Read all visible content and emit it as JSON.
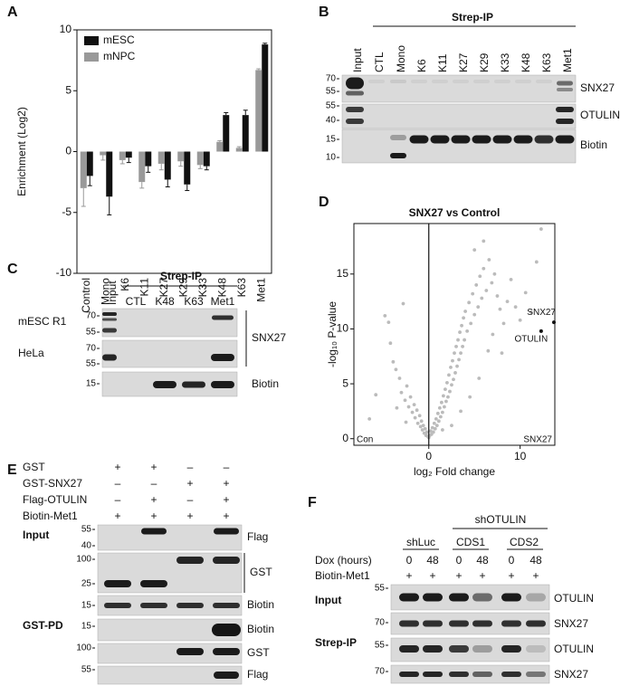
{
  "chart_data": [
    {
      "type": "bar",
      "ylabel": "Enrichment (Log2)",
      "categories": [
        "Control",
        "Mono",
        "K6",
        "K11",
        "K27",
        "K29",
        "K33",
        "K48",
        "K63",
        "Met1"
      ],
      "series": [
        {
          "name": "mESC",
          "color": "#111111",
          "values": [
            -2,
            -3.7,
            -0.5,
            -1.2,
            -2.3,
            -2.7,
            -1.2,
            3.0,
            3.0,
            8.8
          ],
          "errors": [
            0.8,
            1.5,
            0.4,
            0.5,
            0.6,
            0.5,
            0.3,
            0.2,
            0.4,
            0.1
          ]
        },
        {
          "name": "mNPC",
          "color": "#999999",
          "values": [
            -3,
            -0.3,
            -0.7,
            -2.5,
            -1.0,
            -0.8,
            -1.1,
            0.8,
            0.3,
            6.7
          ],
          "errors": [
            1.5,
            0.4,
            0.3,
            0.5,
            0.5,
            0.4,
            0.3,
            0.1,
            0.1,
            0.1
          ]
        }
      ],
      "ylim": [
        -10,
        10
      ],
      "yticks": [
        -10,
        -5,
        0,
        5,
        10
      ],
      "legend": "upper left"
    },
    {
      "type": "scatter",
      "title": "SNX27 vs Control",
      "xlabel": "log₂ Fold change",
      "ylabel": "-log₁₀ P-value",
      "color": "#bbbbbb",
      "x": [
        -6.5,
        -5.8,
        -4.8,
        -4.4,
        -4.2,
        -3.9,
        -3.6,
        -3.2,
        -3,
        -2.8,
        -2.6,
        -2.4,
        -2.2,
        -2,
        -1.8,
        -1.6,
        -1.5,
        -1.3,
        -1.2,
        -1,
        -0.9,
        -0.8,
        -0.7,
        -0.6,
        -0.5,
        -0.4,
        -0.3,
        -0.2,
        -0.1,
        0,
        0.1,
        0.2,
        0.3,
        0.4,
        0.5,
        0.6,
        0.7,
        0.8,
        0.9,
        1,
        1.1,
        1.2,
        1.3,
        1.4,
        1.5,
        1.6,
        1.7,
        1.8,
        1.9,
        2,
        2.1,
        2.2,
        2.3,
        2.4,
        2.5,
        2.6,
        2.7,
        2.8,
        2.9,
        3,
        3.1,
        3.2,
        3.3,
        3.4,
        3.5,
        3.6,
        3.7,
        3.8,
        3.9,
        4,
        4.2,
        4.4,
        4.6,
        4.8,
        5,
        5.2,
        5.4,
        5.6,
        5.8,
        6,
        6.3,
        6.6,
        6.9,
        7.2,
        7.5,
        7.8,
        8.2,
        8.6,
        9,
        9.5,
        10,
        10.6,
        11.2,
        12.3,
        2.5,
        3.5,
        4.5,
        5.5,
        6.5,
        1.5,
        -2.5,
        -3.5,
        5,
        6,
        11.8,
        7,
        8
      ],
      "values": [
        1.8,
        4,
        11.2,
        10.6,
        8.7,
        7,
        6.3,
        5.5,
        4.2,
        12.3,
        3.5,
        4.8,
        2.9,
        3.8,
        2.4,
        3.1,
        1.9,
        2.6,
        1.4,
        2.1,
        1.1,
        1.6,
        0.8,
        1.2,
        0.5,
        0.9,
        0.3,
        0.6,
        0.2,
        0.1,
        0.3,
        0.7,
        0.4,
        1,
        0.6,
        1.4,
        0.9,
        1.8,
        1.2,
        2.3,
        1.6,
        2.8,
        2,
        3.3,
        2.4,
        3.9,
        2.9,
        4.5,
        3.4,
        5.1,
        3.8,
        5.8,
        4.3,
        6.5,
        4.9,
        7.1,
        5.4,
        7.8,
        6,
        8.4,
        6.6,
        9,
        7.2,
        9.7,
        7.8,
        10.3,
        8.4,
        11,
        9,
        11.6,
        9.8,
        12.4,
        10.5,
        13.2,
        11.3,
        14,
        12,
        14.8,
        12.8,
        15.5,
        13.5,
        16.3,
        14.2,
        15,
        13,
        11.8,
        10.5,
        12.5,
        14.5,
        12,
        10.8,
        13.3,
        11.5,
        19.1,
        1.2,
        2.5,
        3.8,
        5.5,
        8,
        0.8,
        1.5,
        2.8,
        17.2,
        18,
        16.1,
        9.5,
        7.8
      ],
      "xlim": [
        -8.2,
        13.8
      ],
      "ylim": [
        -0.6,
        19.6
      ],
      "xticks": [
        0,
        10
      ],
      "yticks": [
        0,
        5,
        10,
        15
      ],
      "highlights": [
        {
          "label": "SNX27",
          "x": 13.7,
          "y": 10.6
        },
        {
          "label": "OTULIN",
          "x": 12.3,
          "y": 9.8
        }
      ],
      "corner_labels": [
        "Con",
        "SNX27"
      ]
    }
  ],
  "panel_labels": [
    "A",
    "B",
    "C",
    "D",
    "E",
    "F"
  ],
  "panel_b": {
    "header": "Strep-IP",
    "lanes": [
      "Input",
      "CTL",
      "Mono",
      "K6",
      "K11",
      "K27",
      "K29",
      "K33",
      "K48",
      "K63",
      "Met1"
    ],
    "blots": [
      {
        "protein": "SNX27",
        "markers": [
          "70",
          "55"
        ]
      },
      {
        "protein": "OTULIN",
        "markers": [
          "55",
          "40"
        ]
      },
      {
        "protein": "Biotin",
        "markers": [
          "15",
          "10"
        ]
      }
    ]
  },
  "panel_c": {
    "header": "Strep-IP",
    "lanes": [
      "Input",
      "CTL",
      "K48",
      "K63",
      "Met1"
    ],
    "blots": [
      {
        "cell_line": "mESC R1",
        "markers": [
          "70",
          "55"
        ]
      },
      {
        "cell_line": "HeLa",
        "markers": [
          "70",
          "55"
        ]
      },
      {
        "protein": "Biotin",
        "markers": [
          "15"
        ]
      }
    ],
    "bracket_label": "SNX27"
  },
  "panel_e": {
    "conditions": [
      {
        "name": "GST",
        "signs": [
          "+",
          "+",
          "–",
          "–"
        ]
      },
      {
        "name": "GST-SNX27",
        "signs": [
          "–",
          "–",
          "+",
          "+"
        ]
      },
      {
        "name": "Flag-OTULIN",
        "signs": [
          "–",
          "+",
          "–",
          "+"
        ]
      },
      {
        "name": "Biotin-Met1",
        "signs": [
          "+",
          "+",
          "+",
          "+"
        ]
      }
    ],
    "sections": [
      {
        "name": "Input",
        "blots": [
          {
            "protein": "Flag",
            "markers": [
              "55",
              "40"
            ]
          },
          {
            "markers": [
              "100",
              "25"
            ]
          },
          {
            "protein": "Biotin",
            "markers": [
              "15"
            ]
          }
        ]
      },
      {
        "name": "GST-PD",
        "blots": [
          {
            "protein": "Biotin",
            "markers": [
              "15"
            ]
          },
          {
            "protein": "GST",
            "markers": [
              "100"
            ]
          },
          {
            "protein": "Flag",
            "markers": [
              "55"
            ]
          }
        ]
      }
    ],
    "bracket_label": "GST"
  },
  "panel_f": {
    "header": "shOTULIN",
    "groups": [
      "shLuc",
      "CDS1",
      "CDS2"
    ],
    "dox_label": "Dox (hours)",
    "dox": [
      "0",
      "48",
      "0",
      "48",
      "0",
      "48"
    ],
    "biotin_label": "Biotin-Met1",
    "biotin": [
      "+",
      "+",
      "+",
      "+",
      "+",
      "+"
    ],
    "sections": [
      {
        "name": "Input",
        "blots": [
          {
            "protein": "OTULIN",
            "markers": [
              "55"
            ]
          },
          {
            "protein": "SNX27",
            "markers": [
              "70"
            ]
          }
        ]
      },
      {
        "name": "Strep-IP",
        "blots": [
          {
            "protein": "OTULIN",
            "markers": [
              "55"
            ]
          },
          {
            "protein": "SNX27",
            "markers": [
              "70"
            ]
          }
        ]
      }
    ]
  }
}
